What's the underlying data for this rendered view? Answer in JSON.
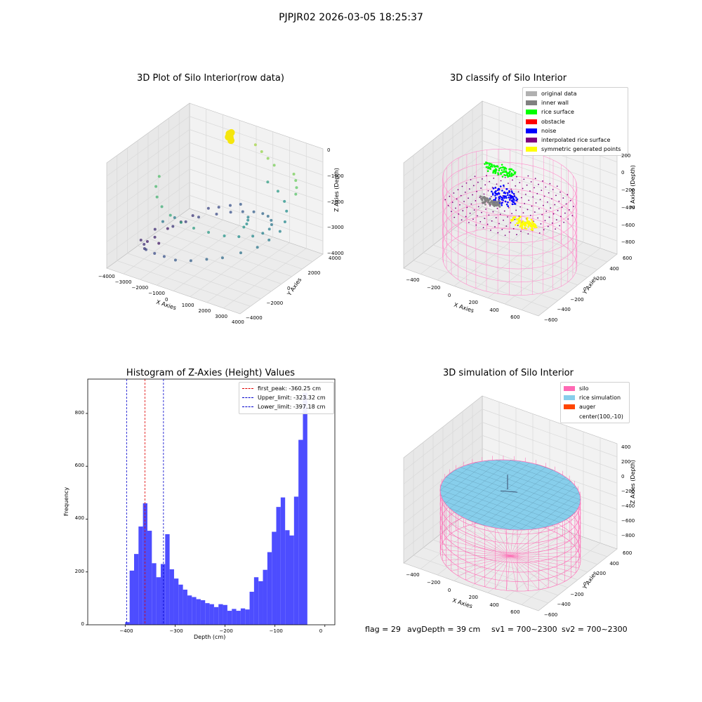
{
  "suptitle": "PJPJR02 2026-03-05 18:25:37",
  "status": {
    "flag": "flag = 29",
    "avg_depth": "avgDepth = 39 cm",
    "sv1": "sv1 = 700~2300",
    "sv2": "sv2 = 700~2300"
  },
  "chart_data": [
    {
      "id": "raw",
      "type": "scatter",
      "title": "3D Plot of Silo Interior(row data)",
      "xlabel": "X Axies",
      "ylabel": "Y Axies",
      "zlabel": "Z Axies (Depth)",
      "x_ticks": [
        "−4000",
        "−3000",
        "−2000",
        "−1000",
        "0",
        "1000",
        "2000",
        "3000",
        "4000"
      ],
      "y_ticks": [
        "−4000",
        "−2000",
        "0",
        "2000",
        "4000"
      ],
      "z_ticks": [
        "0",
        "−1000",
        "−2000",
        "−3000",
        "−4000"
      ],
      "xlim": [
        -4000,
        4000
      ],
      "ylim": [
        -4000,
        4000
      ],
      "zlim": [
        -4300,
        0
      ],
      "colormap": "viridis",
      "highlight_color": "#f5e60d",
      "highlight_points": [
        [
          -1500,
          3800,
          -600
        ],
        [
          -1450,
          3800,
          -700
        ],
        [
          -1500,
          3900,
          -800
        ],
        [
          -1400,
          3850,
          -550
        ],
        [
          -1550,
          3800,
          -750
        ],
        [
          -1450,
          3900,
          -900
        ],
        [
          -1500,
          3850,
          -650
        ]
      ],
      "points": [
        [
          -3500,
          -1500,
          -3800
        ],
        [
          -3300,
          -1200,
          -3900
        ],
        [
          -3000,
          -2000,
          -3700
        ],
        [
          -2800,
          -900,
          -3950
        ],
        [
          -2600,
          -2600,
          -3600
        ],
        [
          -3200,
          600,
          -3900
        ],
        [
          -2900,
          1400,
          -3800
        ],
        [
          -2500,
          1900,
          -3600
        ],
        [
          -2000,
          2600,
          -3400
        ],
        [
          -1500,
          2800,
          -3300
        ],
        [
          -1000,
          3100,
          -3200
        ],
        [
          -500,
          3300,
          -3100
        ],
        [
          -2200,
          -3100,
          -3400
        ],
        [
          -1500,
          -3400,
          -3300
        ],
        [
          -800,
          -3600,
          -3200
        ],
        [
          0,
          -3800,
          -3100
        ],
        [
          800,
          -3600,
          -3000
        ],
        [
          1500,
          -3200,
          -2900
        ],
        [
          2200,
          -2800,
          -2800
        ],
        [
          2800,
          -2000,
          -2700
        ],
        [
          3300,
          -1200,
          -2600
        ],
        [
          3500,
          -400,
          -2500
        ],
        [
          3600,
          500,
          -2400
        ],
        [
          3400,
          1300,
          -2300
        ],
        [
          3000,
          2100,
          -2200
        ],
        [
          2500,
          2700,
          -2100
        ],
        [
          1800,
          3200,
          -2000
        ],
        [
          1000,
          3500,
          -1900
        ],
        [
          -3400,
          -300,
          -3700
        ],
        [
          -3100,
          -800,
          -3800
        ],
        [
          -2700,
          300,
          -3600
        ],
        [
          -2300,
          900,
          -3500
        ],
        [
          -1900,
          1500,
          -3400
        ],
        [
          -1200,
          2100,
          -3300
        ],
        [
          -600,
          2500,
          -3200
        ],
        [
          0,
          2700,
          -3100
        ],
        [
          600,
          2800,
          -3000
        ],
        [
          1200,
          2700,
          -2900
        ],
        [
          1700,
          2400,
          -2800
        ],
        [
          2200,
          1900,
          -2700
        ],
        [
          2600,
          1300,
          -2600
        ],
        [
          2900,
          600,
          -2500
        ],
        [
          3000,
          -200,
          -2400
        ],
        [
          2900,
          -1000,
          -2300
        ],
        [
          2500,
          -1700,
          -2200
        ],
        [
          2000,
          -2300,
          -2100
        ],
        [
          1300,
          -2700,
          -2000
        ],
        [
          600,
          -3000,
          -1900
        ],
        [
          -100,
          -3100,
          -1800
        ],
        [
          -800,
          -3000,
          -1700
        ],
        [
          -1500,
          -2700,
          -1600
        ],
        [
          -2100,
          -2200,
          -1500
        ],
        [
          -2600,
          -1500,
          -1400
        ],
        [
          -2900,
          -700,
          -1300
        ],
        [
          200,
          3600,
          -600
        ],
        [
          700,
          3400,
          -700
        ],
        [
          1200,
          3200,
          -800
        ],
        [
          1700,
          3000,
          -900
        ],
        [
          3000,
          2800,
          -900
        ],
        [
          3300,
          2500,
          -1000
        ],
        [
          3600,
          2100,
          -1100
        ],
        [
          3800,
          1700,
          -1200
        ],
        [
          -2000,
          -1800,
          -2600
        ],
        [
          -1600,
          -1300,
          -2500
        ],
        [
          1500,
          800,
          -2400
        ],
        [
          1800,
          300,
          -2300
        ],
        [
          2100,
          -300,
          -2200
        ],
        [
          2300,
          -900,
          -2100
        ]
      ]
    },
    {
      "id": "classify",
      "type": "scatter",
      "title": "3D classify of Silo Interior",
      "xlabel": "X Axies",
      "ylabel": "Y Axies",
      "zlabel": "Z Axies (Depth)",
      "x_ticks": [
        "−400",
        "−200",
        "0",
        "200",
        "400",
        "600"
      ],
      "y_ticks": [
        "−600",
        "−400",
        "−200",
        "0",
        "200",
        "400",
        "600"
      ],
      "z_ticks": [
        "200",
        "0",
        "−200",
        "−400",
        "−600",
        "−800"
      ],
      "xlim": [
        -550,
        750
      ],
      "ylim": [
        -650,
        650
      ],
      "zlim": [
        -900,
        300
      ],
      "silo": {
        "center": [
          100,
          -10
        ],
        "radius": 560,
        "z_top": 0,
        "z_bottom": -900
      },
      "legend": [
        {
          "label": "original data",
          "color": "#b0b0b0"
        },
        {
          "label": "inner wall",
          "color": "#808080"
        },
        {
          "label": "rice surface",
          "color": "#00ff00"
        },
        {
          "label": "obstacle",
          "color": "#ff0000"
        },
        {
          "label": "noise",
          "color": "#0000ff"
        },
        {
          "label": "interpolated rice surface",
          "color": "#800080"
        },
        {
          "label": "symmetric generated points",
          "color": "#ffff00"
        }
      ],
      "clusters": [
        {
          "name": "rice surface",
          "color": "#00ff00",
          "center": [
            -150,
            250,
            -100
          ],
          "spread": [
            150,
            80,
            40
          ]
        },
        {
          "name": "noise",
          "color": "#0000ff",
          "center": [
            -50,
            150,
            -300
          ],
          "spread": [
            130,
            90,
            120
          ]
        },
        {
          "name": "inner wall",
          "color": "#808080",
          "center": [
            -150,
            100,
            -380
          ],
          "spread": [
            100,
            40,
            50
          ]
        },
        {
          "name": "symmetric generated points",
          "color": "#ffff00",
          "center": [
            350,
            -200,
            -250
          ],
          "spread": [
            120,
            70,
            50
          ]
        }
      ]
    },
    {
      "id": "hist",
      "type": "bar",
      "title": "Histogram of Z-Axies (Height) Values",
      "xlabel": "Depth (cm)",
      "ylabel": "Frequency",
      "bar_color": "#4d4dff",
      "xlim": [
        -475,
        20
      ],
      "ylim": [
        0,
        930
      ],
      "x_ticks": [
        -400,
        -300,
        -200,
        -100,
        0
      ],
      "x_tick_labels": [
        "−400",
        "−300",
        "−200",
        "−100",
        "0"
      ],
      "y_ticks": [
        0,
        200,
        400,
        600,
        800
      ],
      "y_tick_labels": [
        "0",
        "200",
        "400",
        "600",
        "800"
      ],
      "bin_start": -400,
      "bin_width": 8.9,
      "values": [
        10,
        205,
        268,
        372,
        460,
        356,
        233,
        180,
        230,
        343,
        210,
        175,
        152,
        133,
        111,
        105,
        97,
        93,
        82,
        78,
        67,
        78,
        75,
        53,
        60,
        53,
        62,
        58,
        125,
        180,
        165,
        208,
        275,
        352,
        446,
        482,
        358,
        338,
        485,
        700,
        878
      ],
      "vlines": [
        {
          "label": "first_peak: -360.25 cm",
          "x": -360.25,
          "color": "#e00000"
        },
        {
          "label": "Upper_limit: -323.32 cm",
          "x": -323.32,
          "color": "#0000cc"
        },
        {
          "label": "Lower_limit: -397.18 cm",
          "x": -397.18,
          "color": "#0000cc"
        }
      ]
    },
    {
      "id": "sim",
      "type": "surface",
      "title": "3D simulation of Silo Interior",
      "xlabel": "X Axies",
      "ylabel": "Y Axies",
      "zlabel": "Z Axies (Depth)",
      "x_ticks": [
        "−400",
        "−200",
        "0",
        "200",
        "400",
        "600"
      ],
      "y_ticks": [
        "−600",
        "−400",
        "−200",
        "0",
        "200",
        "400",
        "600"
      ],
      "z_ticks": [
        "400",
        "200",
        "0",
        "−200",
        "−400",
        "−600",
        "−800"
      ],
      "legend": [
        {
          "label": "silo",
          "color": "#ff69b4"
        },
        {
          "label": "rice simulation",
          "color": "#87ceeb"
        },
        {
          "label": "auger",
          "color": "#ff4500"
        },
        {
          "label": "center(100,-10)",
          "color": ""
        }
      ]
    }
  ]
}
